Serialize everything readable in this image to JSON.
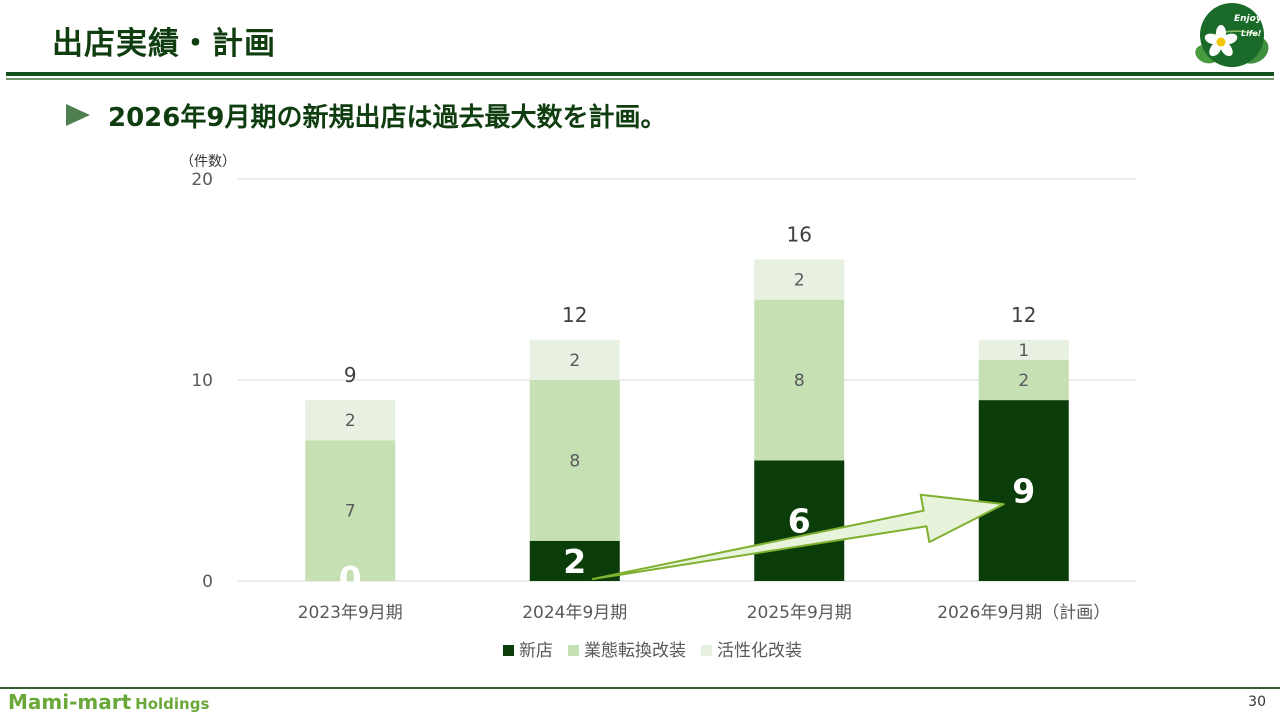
{
  "header": {
    "title": "出店実績・計画",
    "logo": {
      "line1": "Enjoy",
      "line2": "Life!"
    }
  },
  "headline": "2026年9月期の新規出店は過去最大数を計画。",
  "colors": {
    "new_store": "#0a3d0a",
    "conversion": "#c6e0b4",
    "revitalization": "#e8f0e2",
    "brand": "#6aa83a",
    "arrow": "#7fb030"
  },
  "chart_data": {
    "type": "bar",
    "stacked": true,
    "unit_label": "（件数）",
    "categories": [
      "2023年9月期",
      "2024年9月期",
      "2025年9月期",
      "2026年9月期（計画）"
    ],
    "series": [
      {
        "name": "新店",
        "values": [
          0,
          2,
          6,
          9
        ],
        "color": "#0a3d0a",
        "label_color": "#ffffff",
        "label_size": "large"
      },
      {
        "name": "業態転換改装",
        "values": [
          7,
          8,
          8,
          2
        ],
        "color": "#c6e0b4",
        "label_color": "#595959",
        "label_size": "normal"
      },
      {
        "name": "活性化改装",
        "values": [
          2,
          2,
          2,
          1
        ],
        "color": "#e8f0e2",
        "label_color": "#595959",
        "label_size": "normal"
      }
    ],
    "totals": [
      9,
      12,
      16,
      12
    ],
    "ylim": [
      0,
      20
    ],
    "yticks": [
      0,
      10,
      20
    ],
    "grid": true,
    "legend": "bottom-center",
    "annotation": {
      "type": "arrow",
      "from_category": 1,
      "to_category": 3,
      "meaning": "新店 growth"
    }
  },
  "footer": {
    "brand_main": "Mami-mart",
    "brand_sub": "Holdings",
    "page_number": "30"
  }
}
